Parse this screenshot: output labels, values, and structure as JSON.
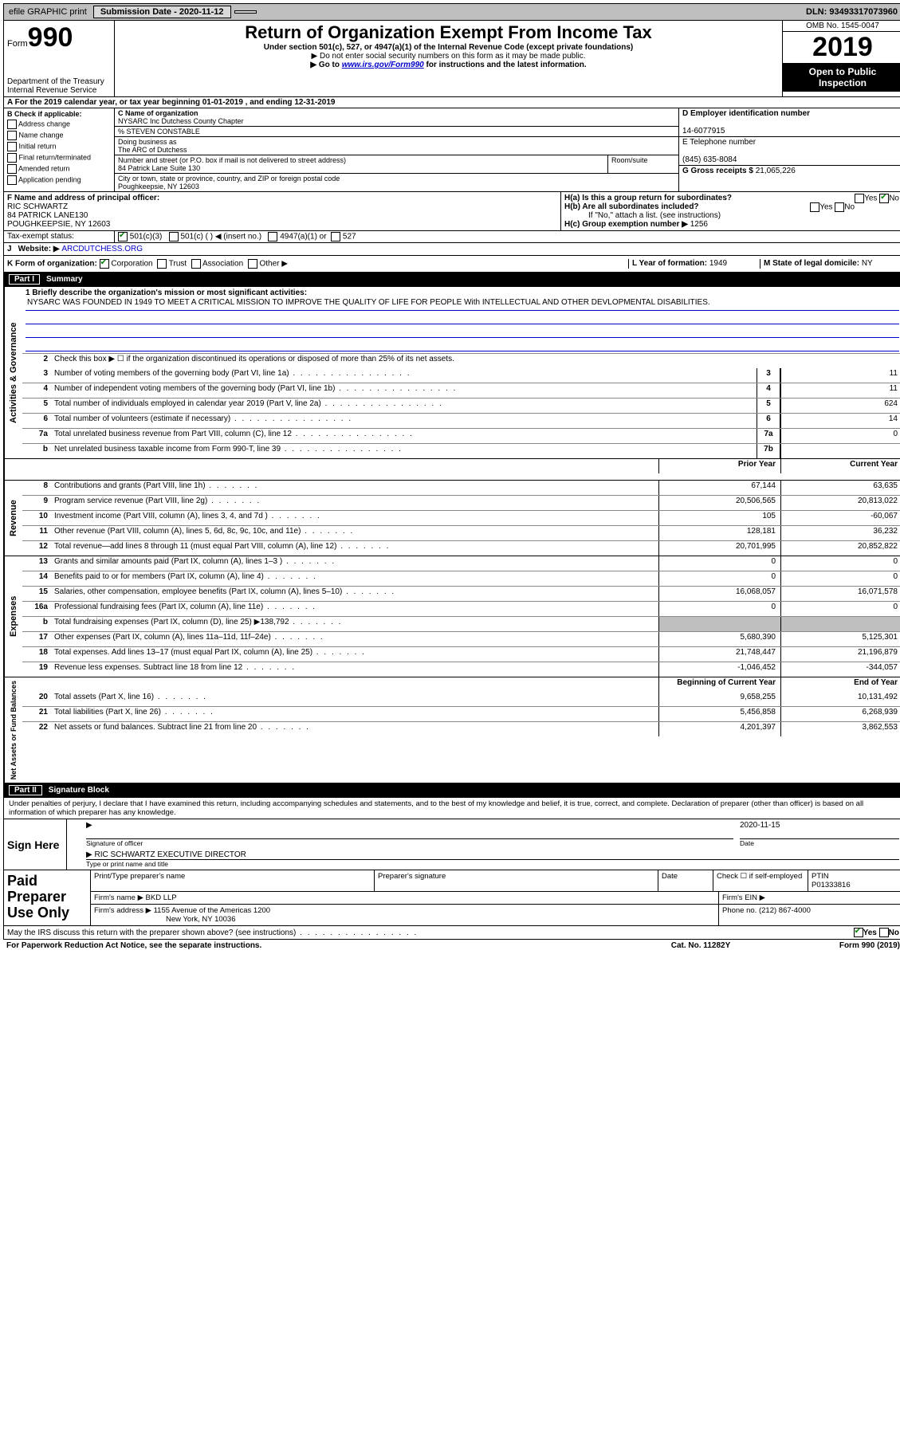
{
  "topbar": {
    "efile": "efile GRAPHIC print",
    "submission_lbl": "Submission Date - 2020-11-12",
    "dln": "DLN: 93493317073960"
  },
  "header": {
    "form_word": "Form",
    "form_num": "990",
    "dept": "Department of the Treasury",
    "irs": "Internal Revenue Service",
    "title": "Return of Organization Exempt From Income Tax",
    "sub1": "Under section 501(c), 527, or 4947(a)(1) of the Internal Revenue Code (except private foundations)",
    "sub2": "▶ Do not enter social security numbers on this form as it may be made public.",
    "sub3_pre": "▶ Go to ",
    "sub3_link": "www.irs.gov/Form990",
    "sub3_post": " for instructions and the latest information.",
    "omb": "OMB No. 1545-0047",
    "year": "2019",
    "open_pub": "Open to Public Inspection"
  },
  "line_a": "A For the 2019 calendar year, or tax year beginning 01-01-2019   , and ending 12-31-2019",
  "block_b": {
    "title": "B Check if applicable:",
    "items": [
      "Address change",
      "Name change",
      "Initial return",
      "Final return/terminated",
      "Amended return",
      "Application pending"
    ]
  },
  "block_c": {
    "name_lbl": "C Name of organization",
    "name_val": "NYSARC Inc Dutchess County Chapter",
    "care_of": "% STEVEN CONSTABLE",
    "dba_lbl": "Doing business as",
    "dba_val": "The ARC of Dutchess",
    "addr_lbl": "Number and street (or P.O. box if mail is not delivered to street address)",
    "addr_val": "84 Patrick Lane Suite 130",
    "room_lbl": "Room/suite",
    "city_lbl": "City or town, state or province, country, and ZIP or foreign postal code",
    "city_val": "Poughkeepsie, NY  12603"
  },
  "block_d": {
    "lbl": "D Employer identification number",
    "val": "14-6077915"
  },
  "block_e": {
    "lbl": "E Telephone number",
    "val": "(845) 635-8084"
  },
  "block_g": {
    "lbl": "G Gross receipts $",
    "val": "21,065,226"
  },
  "block_f": {
    "lbl": "F  Name and address of principal officer:",
    "name": "RIC SCHWARTZ",
    "addr1": "84 PATRICK LANE130",
    "addr2": "POUGHKEEPSIE, NY  12603"
  },
  "block_h": {
    "a": "H(a)  Is this a group return for subordinates?",
    "b": "H(b)  Are all subordinates included?",
    "b_note": "If \"No,\" attach a list. (see instructions)",
    "c_lbl": "H(c)  Group exemption number ▶",
    "c_val": "1256",
    "yes": "Yes",
    "no": "No"
  },
  "status": {
    "lbl": "Tax-exempt status:",
    "c3": "501(c)(3)",
    "c": "501(c) (  ) ◀ (insert no.)",
    "a1": "4947(a)(1) or",
    "s527": "527"
  },
  "website": {
    "lbl": "J",
    "text": "Website: ▶",
    "val": "ARCDUTCHESS.ORG"
  },
  "line_k": {
    "lbl": "K Form of organization:",
    "opts": [
      "Corporation",
      "Trust",
      "Association",
      "Other ▶"
    ],
    "l_lbl": "L Year of formation:",
    "l_val": "1949",
    "m_lbl": "M State of legal domicile:",
    "m_val": "NY"
  },
  "part1": {
    "num": "Part I",
    "title": "Summary"
  },
  "mission": {
    "lead": "1  Briefly describe the organization's mission or most significant activities:",
    "text": "NYSARC WAS FOUNDED IN 1949 TO MEET A CRITICAL MISSION TO IMPROVE THE QUALITY OF LIFE FOR PEOPLE With INTELLECTUAL AND OTHER DEVLOPMENTAL DISABILITIES."
  },
  "gov": {
    "side": "Activities & Governance",
    "l2": "Check this box ▶ ☐  if the organization discontinued its operations or disposed of more than 25% of its net assets.",
    "rows": [
      {
        "n": "3",
        "d": "Number of voting members of the governing body (Part VI, line 1a)",
        "box": "3",
        "v": "11"
      },
      {
        "n": "4",
        "d": "Number of independent voting members of the governing body (Part VI, line 1b)",
        "box": "4",
        "v": "11"
      },
      {
        "n": "5",
        "d": "Total number of individuals employed in calendar year 2019 (Part V, line 2a)",
        "box": "5",
        "v": "624"
      },
      {
        "n": "6",
        "d": "Total number of volunteers (estimate if necessary)",
        "box": "6",
        "v": "14"
      },
      {
        "n": "7a",
        "d": "Total unrelated business revenue from Part VIII, column (C), line 12",
        "box": "7a",
        "v": "0"
      },
      {
        "n": "b",
        "d": "Net unrelated business taxable income from Form 990-T, line 39",
        "box": "7b",
        "v": ""
      }
    ]
  },
  "colhdr": {
    "prior": "Prior Year",
    "current": "Current Year"
  },
  "revenue": {
    "side": "Revenue",
    "rows": [
      {
        "n": "8",
        "d": "Contributions and grants (Part VIII, line 1h)",
        "p": "67,144",
        "c": "63,635"
      },
      {
        "n": "9",
        "d": "Program service revenue (Part VIII, line 2g)",
        "p": "20,506,565",
        "c": "20,813,022"
      },
      {
        "n": "10",
        "d": "Investment income (Part VIII, column (A), lines 3, 4, and 7d )",
        "p": "105",
        "c": "-60,067"
      },
      {
        "n": "11",
        "d": "Other revenue (Part VIII, column (A), lines 5, 6d, 8c, 9c, 10c, and 11e)",
        "p": "128,181",
        "c": "36,232"
      },
      {
        "n": "12",
        "d": "Total revenue—add lines 8 through 11 (must equal Part VIII, column (A), line 12)",
        "p": "20,701,995",
        "c": "20,852,822"
      }
    ]
  },
  "expenses": {
    "side": "Expenses",
    "rows": [
      {
        "n": "13",
        "d": "Grants and similar amounts paid (Part IX, column (A), lines 1–3 )",
        "p": "0",
        "c": "0"
      },
      {
        "n": "14",
        "d": "Benefits paid to or for members (Part IX, column (A), line 4)",
        "p": "0",
        "c": "0"
      },
      {
        "n": "15",
        "d": "Salaries, other compensation, employee benefits (Part IX, column (A), lines 5–10)",
        "p": "16,068,057",
        "c": "16,071,578"
      },
      {
        "n": "16a",
        "d": "Professional fundraising fees (Part IX, column (A), line 11e)",
        "p": "0",
        "c": "0"
      },
      {
        "n": "b",
        "d": "Total fundraising expenses (Part IX, column (D), line 25) ▶138,792",
        "p": "",
        "c": "",
        "shade": true
      },
      {
        "n": "17",
        "d": "Other expenses (Part IX, column (A), lines 11a–11d, 11f–24e)",
        "p": "5,680,390",
        "c": "5,125,301"
      },
      {
        "n": "18",
        "d": "Total expenses. Add lines 13–17 (must equal Part IX, column (A), line 25)",
        "p": "21,748,447",
        "c": "21,196,879"
      },
      {
        "n": "19",
        "d": "Revenue less expenses. Subtract line 18 from line 12",
        "p": "-1,046,452",
        "c": "-344,057"
      }
    ]
  },
  "netassets": {
    "side": "Net Assets or Fund Balances",
    "hdr_p": "Beginning of Current Year",
    "hdr_c": "End of Year",
    "rows": [
      {
        "n": "20",
        "d": "Total assets (Part X, line 16)",
        "p": "9,658,255",
        "c": "10,131,492"
      },
      {
        "n": "21",
        "d": "Total liabilities (Part X, line 26)",
        "p": "5,456,858",
        "c": "6,268,939"
      },
      {
        "n": "22",
        "d": "Net assets or fund balances. Subtract line 21 from line 20",
        "p": "4,201,397",
        "c": "3,862,553"
      }
    ]
  },
  "part2": {
    "num": "Part II",
    "title": "Signature Block"
  },
  "sig": {
    "decl": "Under penalties of perjury, I declare that I have examined this return, including accompanying schedules and statements, and to the best of my knowledge and belief, it is true, correct, and complete. Declaration of preparer (other than officer) is based on all information of which preparer has any knowledge.",
    "here": "Sign Here",
    "sig_of_officer": "Signature of officer",
    "date_lbl": "Date",
    "date_val": "2020-11-15",
    "name_title": "RIC SCHWARTZ  EXECUTIVE DIRECTOR",
    "type_lbl": "Type or print name and title"
  },
  "prep": {
    "left": "Paid Preparer Use Only",
    "h1": "Print/Type preparer's name",
    "h2": "Preparer's signature",
    "h3": "Date",
    "h4a": "Check ☐ if self-employed",
    "h4b_lbl": "PTIN",
    "h4b_val": "P01333816",
    "firm_name_lbl": "Firm's name   ▶",
    "firm_name": "BKD LLP",
    "firm_ein_lbl": "Firm's EIN ▶",
    "firm_addr_lbl": "Firm's address ▶",
    "firm_addr1": "1155 Avenue of the Americas 1200",
    "firm_addr2": "New York, NY  10036",
    "phone_lbl": "Phone no.",
    "phone_val": "(212) 867-4000"
  },
  "footer": {
    "q": "May the IRS discuss this return with the preparer shown above? (see instructions)",
    "yes": "Yes",
    "no": "No",
    "pra": "For Paperwork Reduction Act Notice, see the separate instructions.",
    "cat": "Cat. No. 11282Y",
    "form": "Form 990 (2019)"
  }
}
